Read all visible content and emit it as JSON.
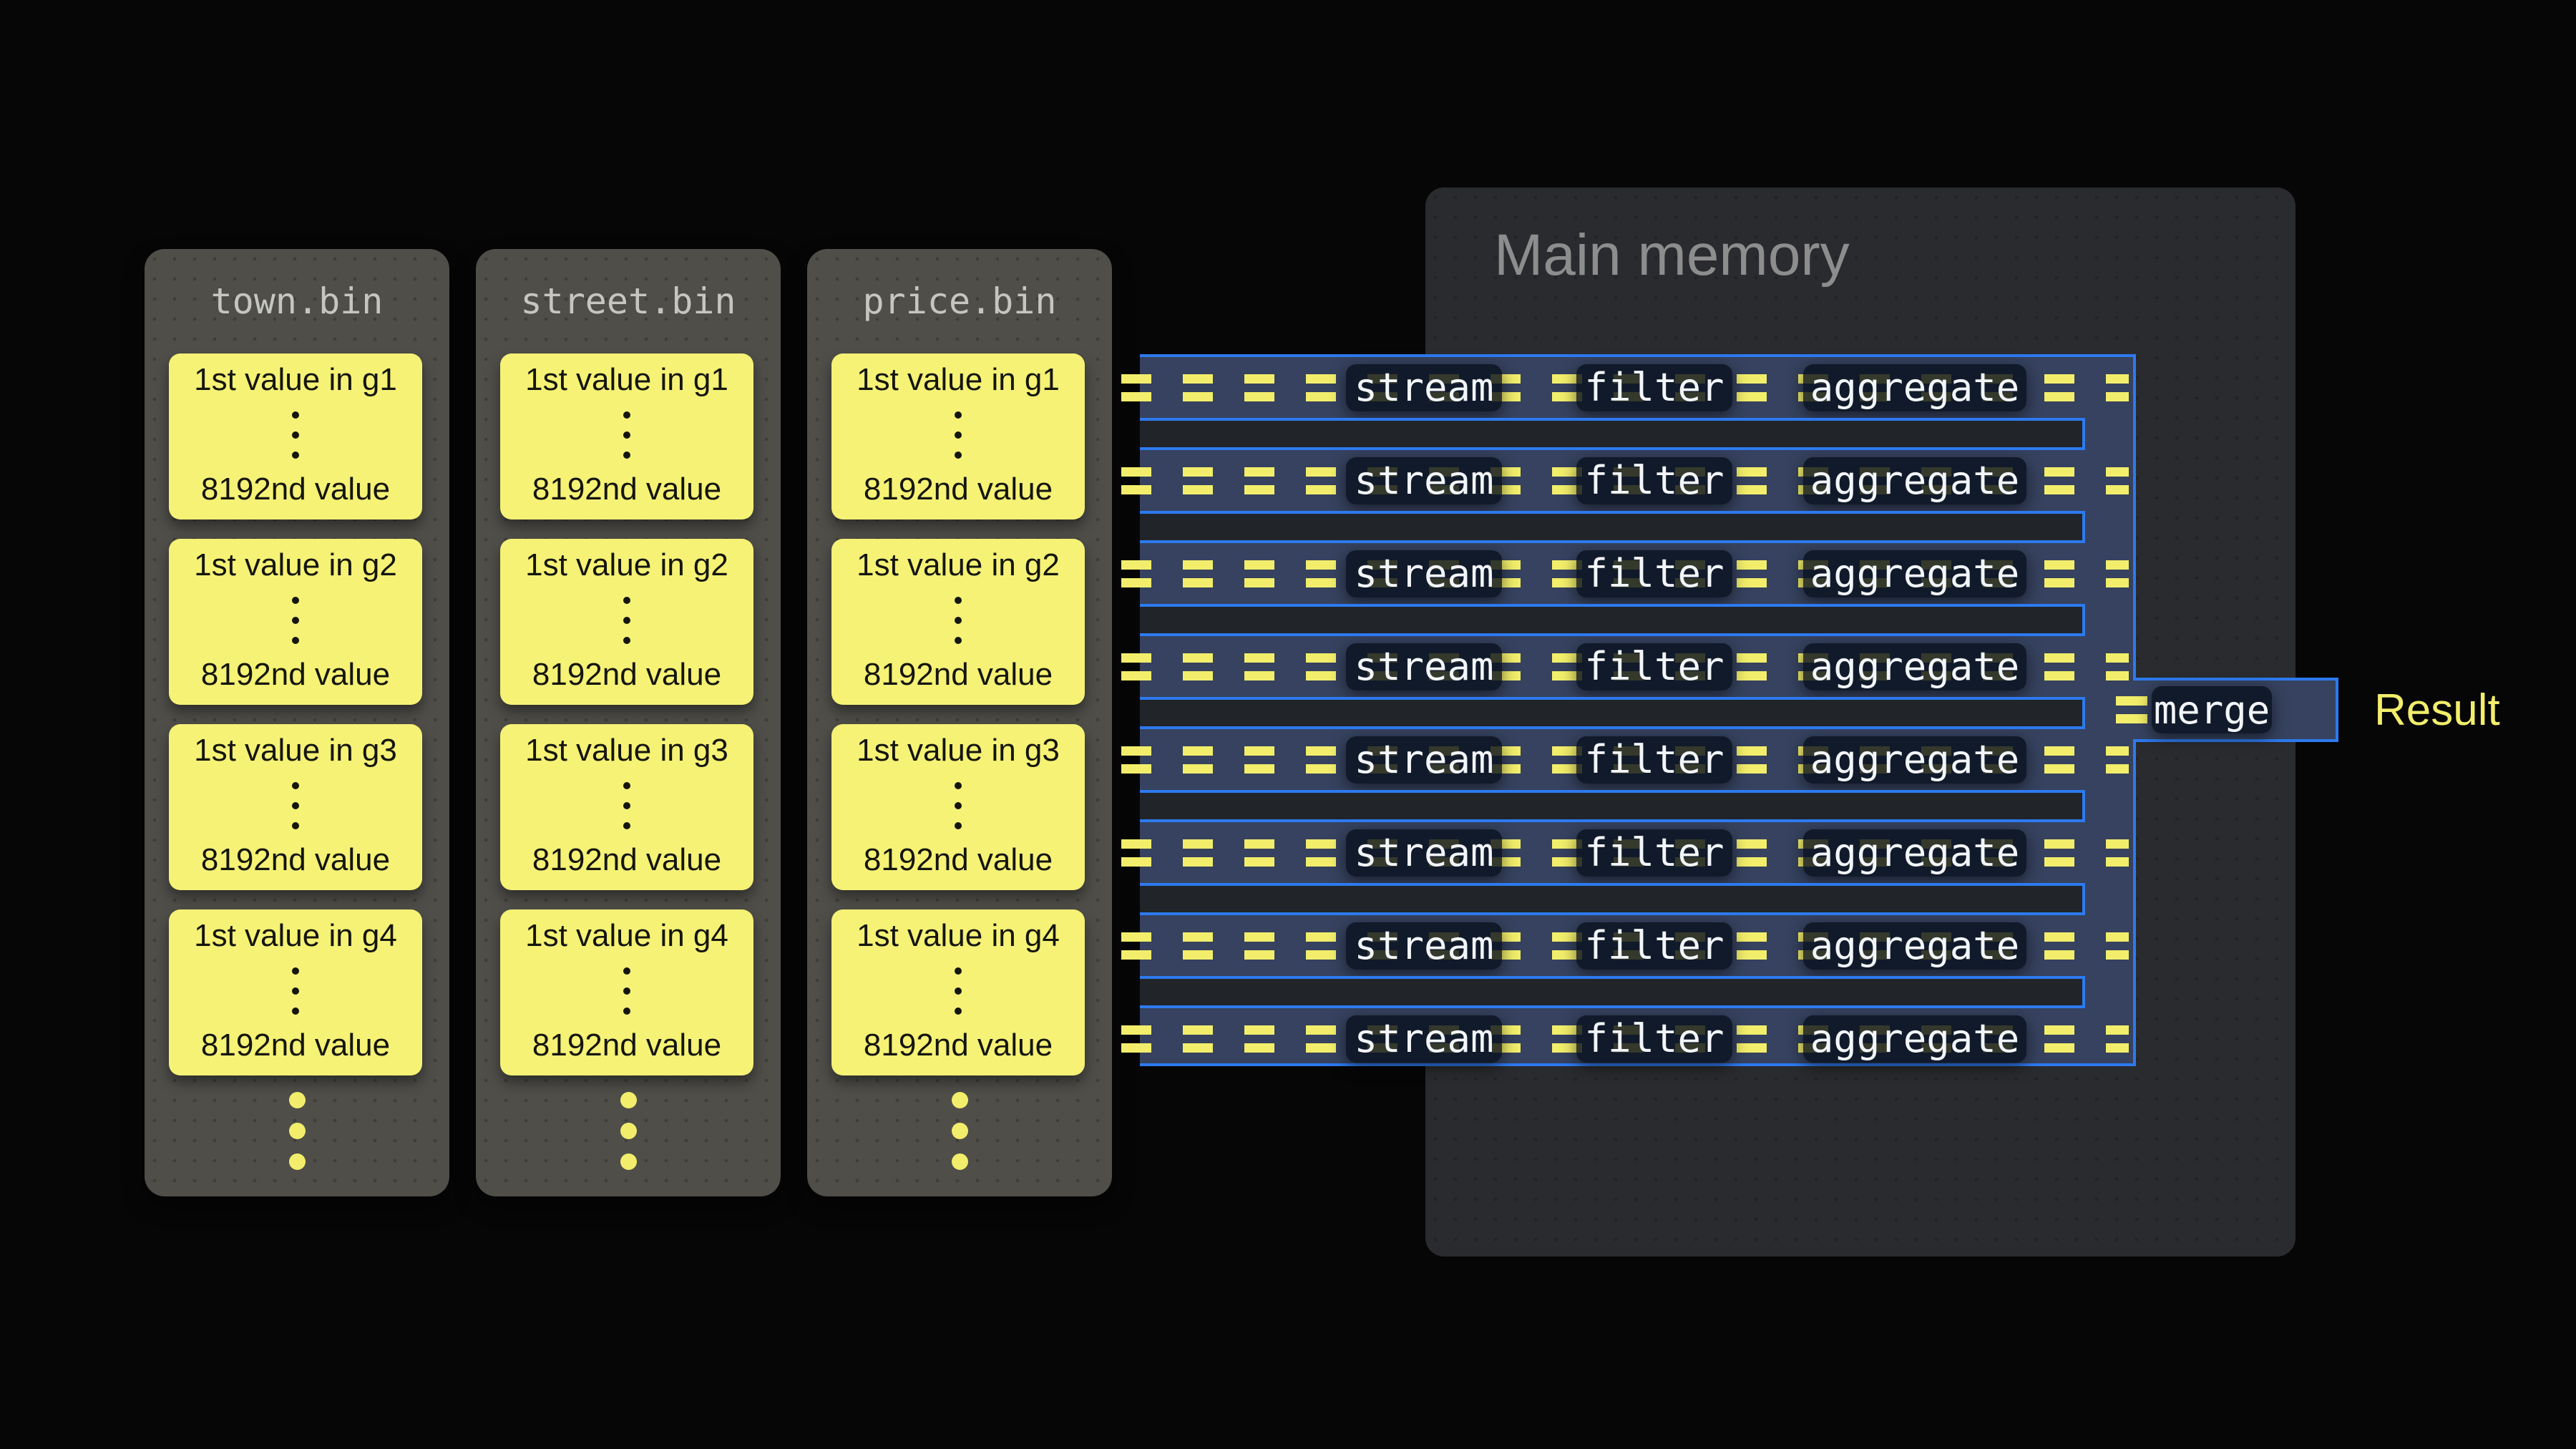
{
  "files": [
    {
      "name": "town.bin",
      "groups": [
        {
          "first": "1st value in g1",
          "last": "8192nd value"
        },
        {
          "first": "1st value in g2",
          "last": "8192nd value"
        },
        {
          "first": "1st value in g3",
          "last": "8192nd value"
        },
        {
          "first": "1st value in g4",
          "last": "8192nd value"
        }
      ]
    },
    {
      "name": "street.bin",
      "groups": [
        {
          "first": "1st value in g1",
          "last": "8192nd value"
        },
        {
          "first": "1st value in g2",
          "last": "8192nd value"
        },
        {
          "first": "1st value in g3",
          "last": "8192nd value"
        },
        {
          "first": "1st value in g4",
          "last": "8192nd value"
        }
      ]
    },
    {
      "name": "price.bin",
      "groups": [
        {
          "first": "1st value in g1",
          "last": "8192nd value"
        },
        {
          "first": "1st value in g2",
          "last": "8192nd value"
        },
        {
          "first": "1st value in g3",
          "last": "8192nd value"
        },
        {
          "first": "1st value in g4",
          "last": "8192nd value"
        }
      ]
    }
  ],
  "memory": {
    "title": "Main memory"
  },
  "pipeline": {
    "row_count": 8,
    "stages": {
      "stream": "stream",
      "filter": "filter",
      "aggregate": "aggregate"
    },
    "merge_label": "merge"
  },
  "result_label": "Result",
  "colors": {
    "accent_blue": "#2d7af0",
    "accent_yellow": "#f2ee6b",
    "card_yellow": "#f5f276",
    "row_navy": "#36425f",
    "gap_fill": "#212428",
    "memory_bg": "#2a2b2e",
    "file_bg": "#4f4e49",
    "label_box": "#0a111e"
  }
}
